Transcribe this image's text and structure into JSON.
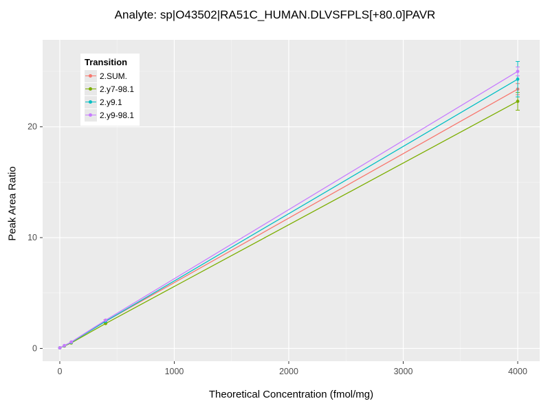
{
  "title": "Analyte: sp|O43502|RA51C_HUMAN.DLVSFPLS[+80.0]PAVR",
  "chart_data": {
    "type": "line",
    "title": "Analyte: sp|O43502|RA51C_HUMAN.DLVSFPLS[+80.0]PAVR",
    "xlabel": "Theoretical Concentration (fmol/mg)",
    "ylabel": "Peak Area Ratio",
    "xlim": [
      -150,
      4192
    ],
    "ylim": [
      -1.15,
      27.85
    ],
    "x_ticks": [
      0,
      1000,
      2000,
      3000,
      4000
    ],
    "x_minor_ticks": [
      500,
      1500,
      2500,
      3500
    ],
    "y_ticks": [
      0,
      10,
      20
    ],
    "y_minor_ticks": [
      5,
      15,
      25
    ],
    "grid": true,
    "panel_bg": "#EBEBEB",
    "grid_major_color": "#FFFFFF",
    "grid_minor_color": "#F5F5F5",
    "tick_label_color": "#4D4D4D",
    "legend_title": "Transition",
    "legend_position": "top-left-inside",
    "x": [
      0,
      40,
      100,
      400,
      4000
    ],
    "series": [
      {
        "name": "2.SUM.",
        "color": "#F8766D",
        "values": [
          0.05,
          0.25,
          0.55,
          2.45,
          23.4
        ],
        "errors": [
          0,
          0,
          0,
          0.15,
          0.5
        ]
      },
      {
        "name": "2.y7-98.1",
        "color": "#7CAE00",
        "values": [
          0.05,
          0.22,
          0.5,
          2.25,
          22.3
        ],
        "errors": [
          0,
          0,
          0,
          0,
          0.8
        ]
      },
      {
        "name": "2.y9.1",
        "color": "#00BFC4",
        "values": [
          0.05,
          0.25,
          0.55,
          2.45,
          24.3
        ],
        "errors": [
          0,
          0,
          0,
          0,
          1.6
        ]
      },
      {
        "name": "2.y9-98.1",
        "color": "#C77CFF",
        "values": [
          0.05,
          0.26,
          0.58,
          2.55,
          25.0
        ],
        "errors": [
          0,
          0,
          0,
          0,
          0.4
        ]
      }
    ]
  }
}
